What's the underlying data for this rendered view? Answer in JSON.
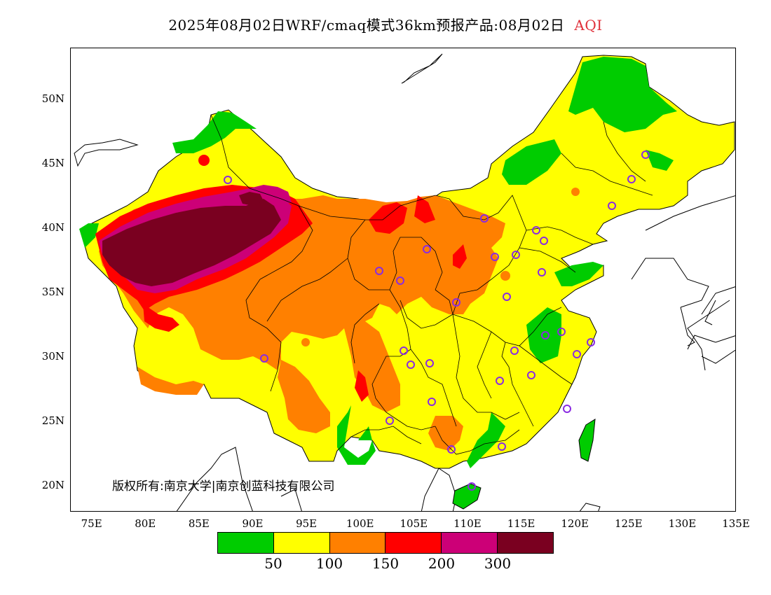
{
  "title": {
    "main": "2025年08月02日WRF/cmaq模式36km预报产品:08月02日",
    "variable": "AQI",
    "variable_color": "#e0303a"
  },
  "axes": {
    "lat_labels": [
      "50N",
      "45N",
      "40N",
      "35N",
      "30N",
      "25N",
      "20N"
    ],
    "lon_labels": [
      "75E",
      "80E",
      "85E",
      "90E",
      "95E",
      "100E",
      "105E",
      "110E",
      "115E",
      "120E",
      "125E",
      "130E",
      "135E"
    ]
  },
  "copyright": "版权所有:南京大学|南京创蓝科技有限公司",
  "legend": {
    "colors": [
      "#00cc00",
      "#ffff00",
      "#ff8000",
      "#ff0000",
      "#cc0077",
      "#7a0020"
    ],
    "thresholds": [
      "50",
      "100",
      "150",
      "200",
      "300"
    ]
  },
  "map": {
    "lon_range": [
      73,
      135
    ],
    "lat_range": [
      18,
      54
    ],
    "aqi_colors": {
      "good": "#00cc00",
      "moderate": "#ffff00",
      "unhealthy_sensitive": "#ff8000",
      "unhealthy": "#ff0000",
      "very_unhealthy": "#cc0077",
      "hazardous": "#7a0020"
    },
    "station_marker_color": "#8a2be2"
  }
}
